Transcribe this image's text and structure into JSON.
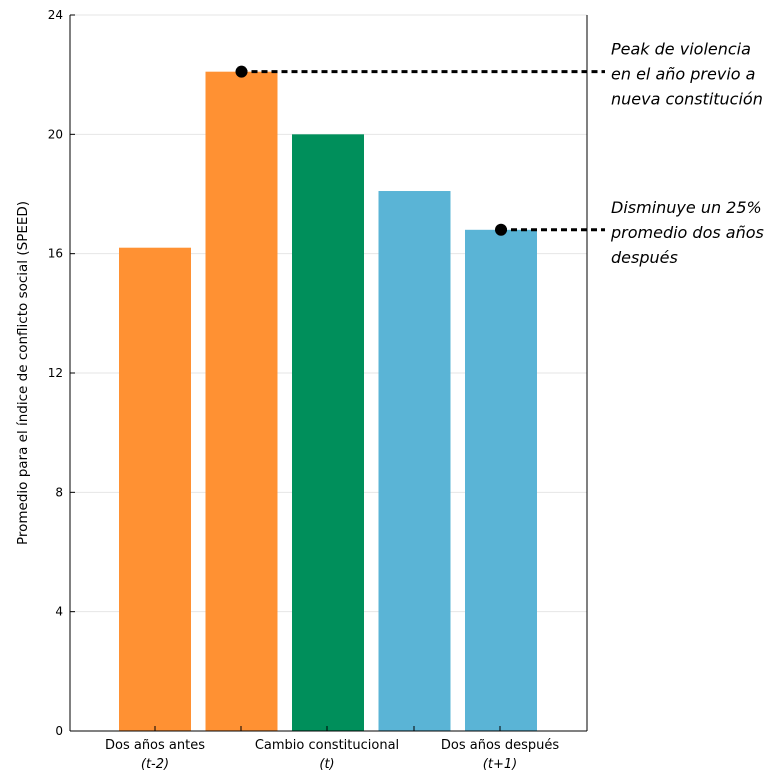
{
  "chart_data": {
    "type": "bar",
    "ylabel": "Promedio para el índice de conflicto social (SPEED)",
    "ylim": [
      0,
      24
    ],
    "yticks": [
      "0",
      "4",
      "8",
      "12",
      "16",
      "20",
      "24"
    ],
    "grid": true,
    "values": [
      16.2,
      22.1,
      20.0,
      18.1,
      16.8
    ],
    "colors": [
      "#FF9133",
      "#FF9133",
      "#008F5B",
      "#5AB4D6",
      "#5AB4D6"
    ],
    "category_labels": [
      {
        "line1": "Dos años antes",
        "line2": "(t-2)"
      },
      {
        "line1": "Cambio constitucional",
        "line2": "(t)"
      },
      {
        "line1": "Dos años después",
        "line2": "(t+1)"
      }
    ],
    "annotations": [
      {
        "bar_index": 1,
        "lines": [
          "Peak de violencia",
          "en el año previo a",
          "nueva constitución"
        ]
      },
      {
        "bar_index": 4,
        "lines": [
          "Disminuye un 25%",
          "promedio dos años",
          "después"
        ]
      }
    ]
  }
}
